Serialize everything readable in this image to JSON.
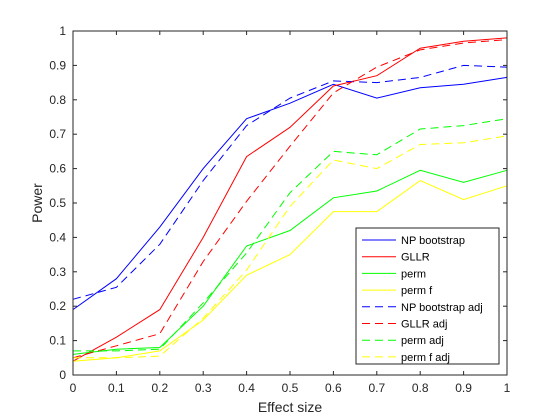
{
  "chart_data": {
    "type": "line",
    "title": "",
    "xlabel": "Effect size",
    "ylabel": "Power",
    "xlim": [
      0,
      1
    ],
    "ylim": [
      0,
      1
    ],
    "grid": false,
    "legend_position": "bottom-right",
    "x": [
      0,
      0.1,
      0.2,
      0.3,
      0.4,
      0.5,
      0.6,
      0.7,
      0.8,
      0.9,
      1
    ],
    "x_ticks": [
      "0",
      "0.1",
      "0.2",
      "0.3",
      "0.4",
      "0.5",
      "0.6",
      "0.7",
      "0.8",
      "0.9",
      "1"
    ],
    "y_ticks": [
      "0",
      "0.1",
      "0.2",
      "0.3",
      "0.4",
      "0.5",
      "0.6",
      "0.7",
      "0.8",
      "0.9",
      "1"
    ],
    "series": [
      {
        "name": "NP bootstrap",
        "color": "#0000ff",
        "style": "solid",
        "values": [
          0.19,
          0.28,
          0.43,
          0.6,
          0.745,
          0.79,
          0.845,
          0.805,
          0.835,
          0.845,
          0.865
        ]
      },
      {
        "name": "GLLR",
        "color": "#ff0000",
        "style": "solid",
        "values": [
          0.04,
          0.11,
          0.19,
          0.4,
          0.635,
          0.72,
          0.84,
          0.87,
          0.95,
          0.97,
          0.98
        ]
      },
      {
        "name": "perm",
        "color": "#00ff00",
        "style": "solid",
        "values": [
          0.06,
          0.075,
          0.08,
          0.2,
          0.375,
          0.42,
          0.515,
          0.535,
          0.595,
          0.56,
          0.595
        ]
      },
      {
        "name": "perm f",
        "color": "#ffff00",
        "style": "solid",
        "values": [
          0.04,
          0.05,
          0.07,
          0.16,
          0.29,
          0.35,
          0.475,
          0.475,
          0.565,
          0.51,
          0.55
        ]
      },
      {
        "name": "NP bootstrap adj",
        "color": "#0000ff",
        "style": "dashed",
        "values": [
          0.22,
          0.255,
          0.38,
          0.565,
          0.725,
          0.805,
          0.855,
          0.85,
          0.865,
          0.9,
          0.895
        ]
      },
      {
        "name": "GLLR adj",
        "color": "#ff0000",
        "style": "dashed",
        "values": [
          0.05,
          0.085,
          0.12,
          0.33,
          0.505,
          0.665,
          0.82,
          0.895,
          0.945,
          0.965,
          0.975
        ]
      },
      {
        "name": "perm adj",
        "color": "#00ff00",
        "style": "dashed",
        "values": [
          0.07,
          0.07,
          0.075,
          0.21,
          0.355,
          0.53,
          0.65,
          0.64,
          0.715,
          0.725,
          0.745
        ]
      },
      {
        "name": "perm f adj",
        "color": "#ffff00",
        "style": "dashed",
        "values": [
          0.05,
          0.05,
          0.055,
          0.165,
          0.305,
          0.49,
          0.625,
          0.6,
          0.67,
          0.675,
          0.695
        ]
      }
    ]
  }
}
